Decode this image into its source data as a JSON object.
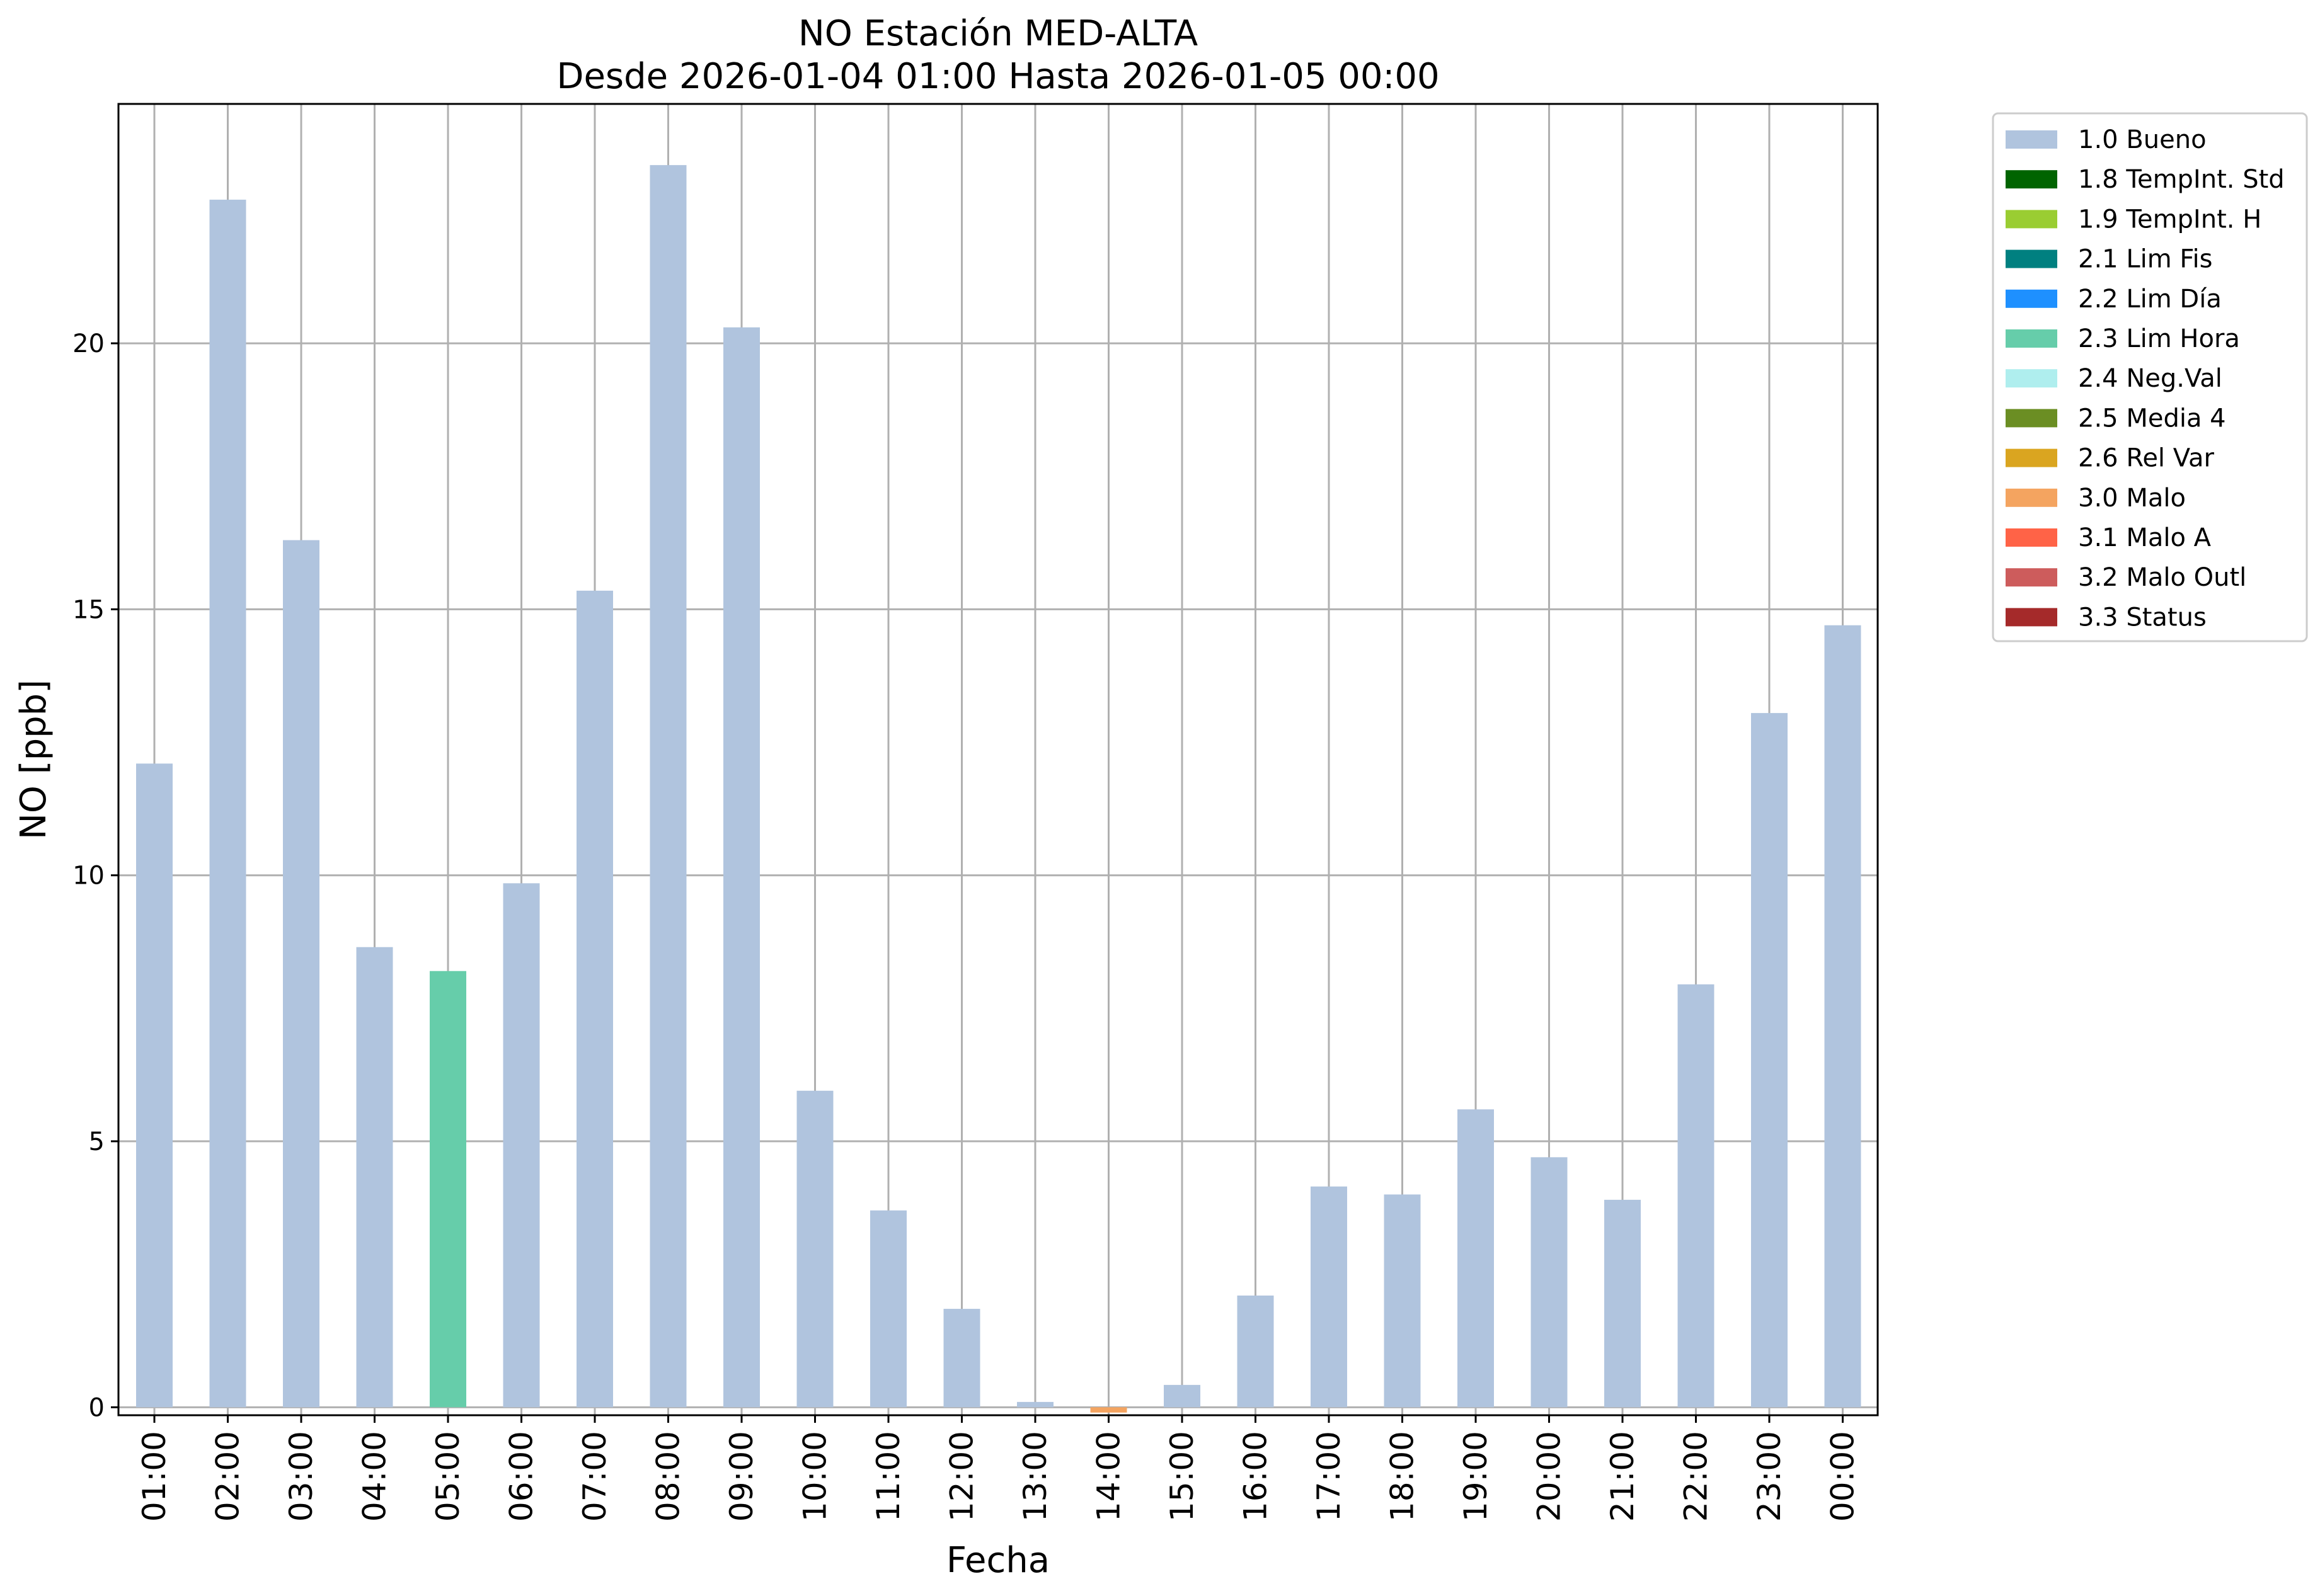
{
  "chart_data": {
    "type": "bar",
    "title": "NO Estación MED-ALTA",
    "subtitle": "Desde 2026-01-04 01:00 Hasta 2026-01-05 00:00",
    "xlabel": "Fecha",
    "ylabel": "NO [ppb]",
    "ylim": [
      -0.15,
      24.5
    ],
    "yticks": [
      0,
      5,
      10,
      15,
      20
    ],
    "grid": true,
    "legend_position": "outside-top-right",
    "categories": [
      "01:00",
      "02:00",
      "03:00",
      "04:00",
      "05:00",
      "06:00",
      "07:00",
      "08:00",
      "09:00",
      "10:00",
      "11:00",
      "12:00",
      "13:00",
      "14:00",
      "15:00",
      "16:00",
      "17:00",
      "18:00",
      "19:00",
      "20:00",
      "21:00",
      "22:00",
      "23:00",
      "00:00"
    ],
    "values": [
      12.1,
      22.7,
      16.3,
      8.65,
      8.2,
      9.85,
      15.35,
      23.35,
      20.3,
      5.95,
      3.7,
      1.85,
      0.1,
      -0.1,
      0.42,
      2.1,
      4.15,
      4.0,
      5.6,
      4.7,
      3.9,
      7.95,
      13.05,
      14.7
    ],
    "flags": [
      "1.0",
      "1.0",
      "1.0",
      "1.0",
      "2.3",
      "1.0",
      "1.0",
      "1.0",
      "1.0",
      "1.0",
      "1.0",
      "1.0",
      "1.0",
      "3.0",
      "1.0",
      "1.0",
      "1.0",
      "1.0",
      "1.0",
      "1.0",
      "1.0",
      "1.0",
      "1.0",
      "1.0"
    ],
    "legend": [
      {
        "code": "1.0",
        "label": "1.0 Bueno",
        "color": "#b0c4de"
      },
      {
        "code": "1.8",
        "label": "1.8 TempInt. Std",
        "color": "#006400"
      },
      {
        "code": "1.9",
        "label": "1.9 TempInt. H",
        "color": "#9acd32"
      },
      {
        "code": "2.1",
        "label": "2.1 Lim Fis",
        "color": "#008080"
      },
      {
        "code": "2.2",
        "label": "2.2 Lim Día",
        "color": "#1e90ff"
      },
      {
        "code": "2.3",
        "label": "2.3 Lim Hora",
        "color": "#66cdaa"
      },
      {
        "code": "2.4",
        "label": "2.4 Neg.Val",
        "color": "#afeeee"
      },
      {
        "code": "2.5",
        "label": "2.5 Media 4",
        "color": "#6b8e23"
      },
      {
        "code": "2.6",
        "label": "2.6 Rel Var",
        "color": "#daa520"
      },
      {
        "code": "3.0",
        "label": "3.0 Malo",
        "color": "#f4a460"
      },
      {
        "code": "3.1",
        "label": "3.1 Malo A",
        "color": "#ff6347"
      },
      {
        "code": "3.2",
        "label": "3.2 Malo Outl",
        "color": "#cd5c5c"
      },
      {
        "code": "3.3",
        "label": "3.3 Status",
        "color": "#a52a2a"
      }
    ]
  }
}
